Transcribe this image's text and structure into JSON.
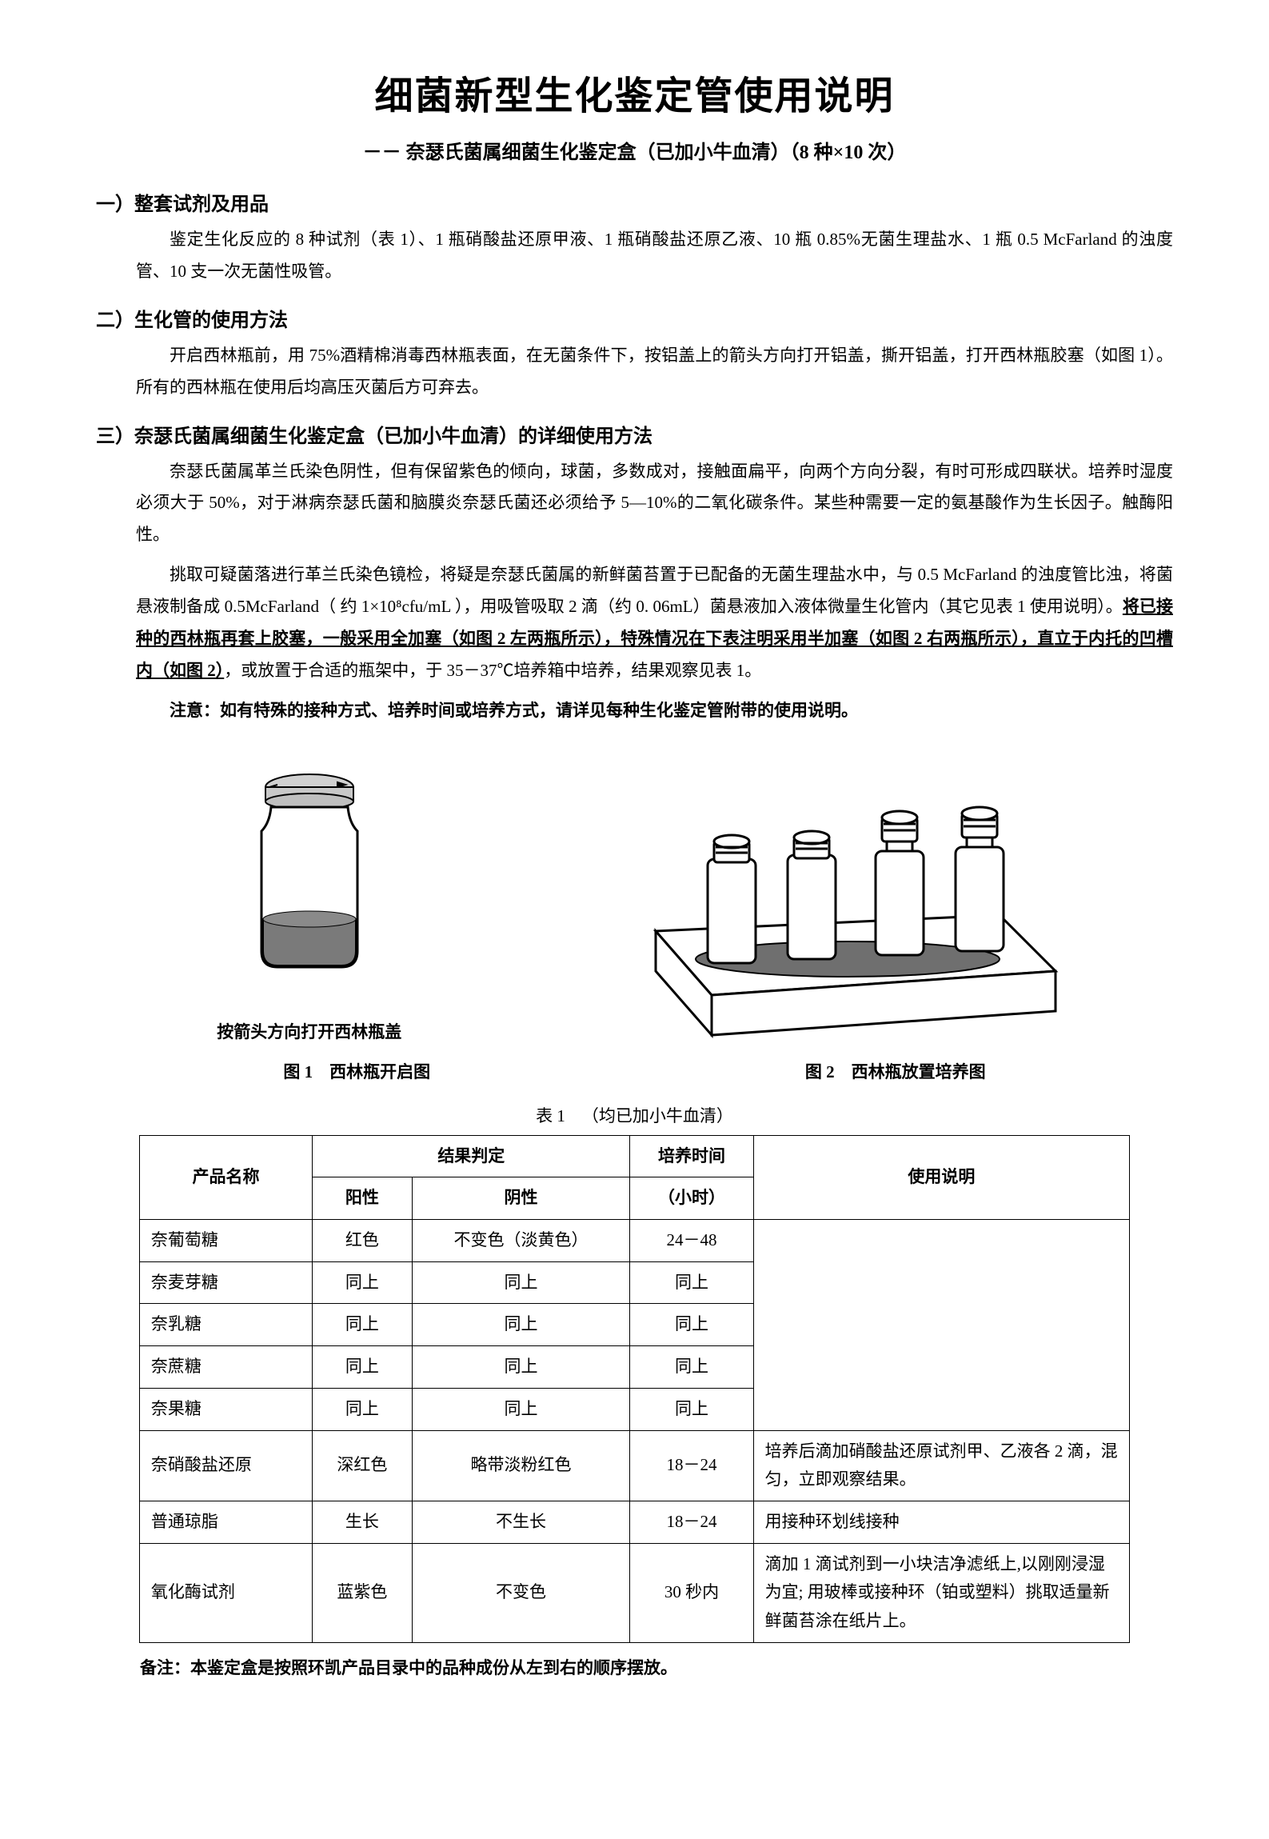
{
  "title": "细菌新型生化鉴定管使用说明",
  "subtitle": "－－ 奈瑟氏菌属细菌生化鉴定盒（已加小牛血清）（8 种×10 次）",
  "sections": {
    "s1": {
      "head": "一）整套试剂及用品",
      "p1": "鉴定生化反应的 8 种试剂（表 1）、1 瓶硝酸盐还原甲液、1 瓶硝酸盐还原乙液、10 瓶 0.85%无菌生理盐水、1 瓶 0.5 McFarland 的浊度管、10 支一次无菌性吸管。"
    },
    "s2": {
      "head": "二）生化管的使用方法",
      "p1": "开启西林瓶前，用 75%酒精棉消毒西林瓶表面，在无菌条件下，按铝盖上的箭头方向打开铝盖，撕开铝盖，打开西林瓶胶塞（如图 1）。所有的西林瓶在使用后均高压灭菌后方可弃去。"
    },
    "s3": {
      "head": "三）奈瑟氏菌属细菌生化鉴定盒（已加小牛血清）的详细使用方法",
      "p1": "奈瑟氏菌属革兰氏染色阴性，但有保留紫色的倾向，球菌，多数成对，接触面扁平，向两个方向分裂，有时可形成四联状。培养时湿度必须大于 50%，对于淋病奈瑟氏菌和脑膜炎奈瑟氏菌还必须给予 5—10%的二氧化碳条件。某些种需要一定的氨基酸作为生长因子。触酶阳性。",
      "p2a": "挑取可疑菌落进行革兰氏染色镜检，将疑是奈瑟氏菌属的新鲜菌苔置于已配备的无菌生理盐水中，与 0.5 McFarland 的浊度管比浊，将菌悬液制备成 0.5McFarland（ 约 1×10⁸cfu/mL ），用吸管吸取 2 滴（约 0. 06mL）菌悬液加入液体微量生化管内（其它见表 1 使用说明）。",
      "p2u": "将已接种的西林瓶再套上胶塞，一般采用全加塞（如图 2 左两瓶所示），特殊情况在下表注明采用半加塞（如图 2 右两瓶所示），直立于内托的凹槽内（如图 2）",
      "p2b": "，或放置于合适的瓶架中，于 35－37℃培养箱中培养，结果观察见表 1。",
      "p3": "注意：如有特殊的接种方式、培养时间或培养方式，请详见每种生化鉴定管附带的使用说明。"
    }
  },
  "fig1": {
    "caption_below_img": "按箭头方向打开西林瓶盖",
    "label": "图 1 西林瓶开启图"
  },
  "fig2": {
    "label": "图 2 西林瓶放置培养图"
  },
  "table": {
    "title": "表 1 （均已加小牛血清）",
    "headers": {
      "product": "产品名称",
      "result": "结果判定",
      "pos": "阳性",
      "neg": "阴性",
      "time": "培养时间",
      "time_sub": "（小时）",
      "instr": "使用说明"
    },
    "rows": [
      {
        "name": "奈葡萄糖",
        "pos": "红色",
        "neg": "不变色（淡黄色）",
        "time": "24－48",
        "instr": ""
      },
      {
        "name": "奈麦芽糖",
        "pos": "同上",
        "neg": "同上",
        "time": "同上",
        "instr": ""
      },
      {
        "name": "奈乳糖",
        "pos": "同上",
        "neg": "同上",
        "time": "同上",
        "instr": ""
      },
      {
        "name": "奈蔗糖",
        "pos": "同上",
        "neg": "同上",
        "time": "同上",
        "instr": ""
      },
      {
        "name": "奈果糖",
        "pos": "同上",
        "neg": "同上",
        "time": "同上",
        "instr": ""
      },
      {
        "name": "奈硝酸盐还原",
        "pos": "深红色",
        "neg": "略带淡粉红色",
        "time": "18－24",
        "instr": "培养后滴加硝酸盐还原试剂甲、乙液各 2 滴，混匀，立即观察结果。"
      },
      {
        "name": "普通琼脂",
        "pos": "生长",
        "neg": "不生长",
        "time": "18－24",
        "instr": "用接种环划线接种"
      },
      {
        "name": "氧化酶试剂",
        "pos": "蓝紫色",
        "neg": "不变色",
        "time": "30 秒内",
        "instr": "滴加 1 滴试剂到一小块洁净滤纸上,以刚刚浸湿为宜; 用玻棒或接种环（铂或塑料）挑取适量新鲜菌苔涂在纸片上。"
      }
    ]
  },
  "footnote": "备注：本鉴定盒是按照环凯产品目录中的品种成份从左到右的顺序摆放。"
}
